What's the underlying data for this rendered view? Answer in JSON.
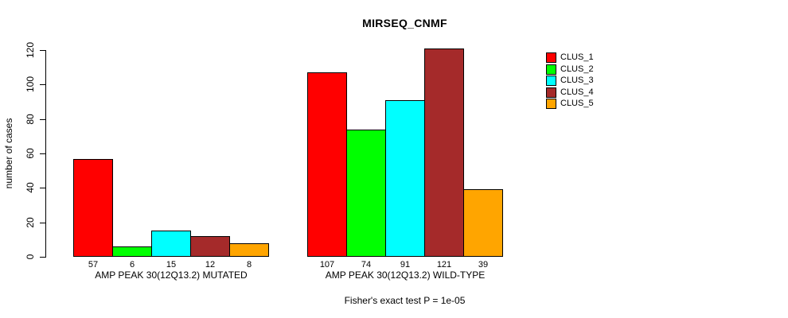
{
  "chart_data": {
    "type": "bar",
    "title": "MIRSEQ_CNMF",
    "ylabel": "number of cases",
    "xlabel": "",
    "ylim": [
      0,
      120
    ],
    "yticks": [
      0,
      20,
      40,
      60,
      80,
      100,
      120
    ],
    "grid": false,
    "legend_position": "right",
    "series_names": [
      "CLUS_1",
      "CLUS_2",
      "CLUS_3",
      "CLUS_4",
      "CLUS_5"
    ],
    "legend": [
      {
        "label": "CLUS_1",
        "color": "#FF0000"
      },
      {
        "label": "CLUS_2",
        "color": "#00FF00"
      },
      {
        "label": "CLUS_3",
        "color": "#00FFFF"
      },
      {
        "label": "CLUS_4",
        "color": "#A52A2A"
      },
      {
        "label": "CLUS_5",
        "color": "#FFA500"
      }
    ],
    "groups": [
      {
        "label": "AMP PEAK 30(12Q13.2) MUTATED",
        "values": [
          57,
          6,
          15,
          12,
          8
        ]
      },
      {
        "label": "AMP PEAK 30(12Q13.2) WILD-TYPE",
        "values": [
          107,
          74,
          91,
          121,
          39
        ]
      }
    ],
    "bar_value_labels_shown": true,
    "annotation": "Fisher's exact test P = 1e-05"
  }
}
